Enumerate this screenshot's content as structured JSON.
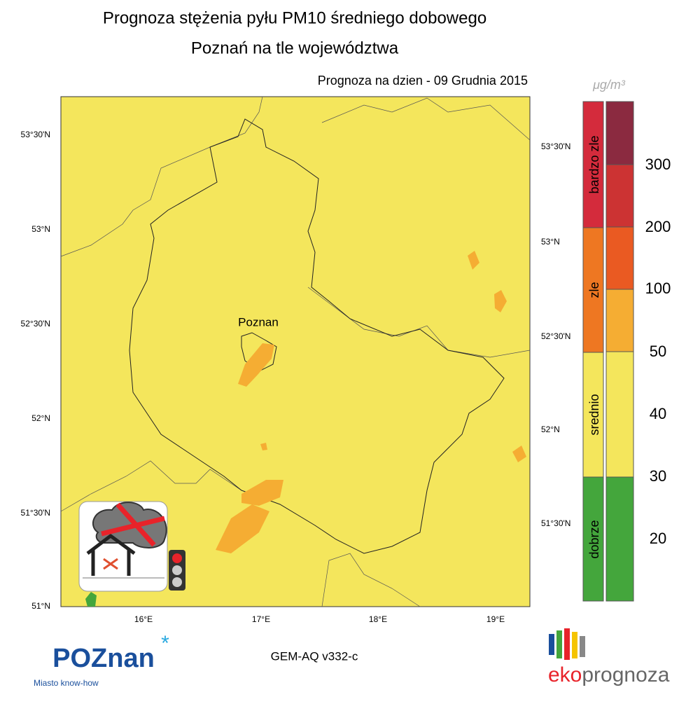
{
  "header": {
    "title_line1": "Prognoza stężenia pyłu PM10 średniego dobowego",
    "title_line2": "Poznań na tle województwa",
    "forecast_date": "Prognoza na dzien -  09 Grudnia 2015"
  },
  "map": {
    "left_lat_ticks": [
      "53°30'N",
      "53°N",
      "52°30'N",
      "52°N",
      "51°30'N",
      "51°N"
    ],
    "right_lat_ticks": [
      "53°30'N",
      "53°N",
      "52°30'N",
      "52°N",
      "51°30'N"
    ],
    "lon_ticks": [
      "16°E",
      "17°E",
      "18°E",
      "19°E"
    ],
    "city_label": "Poznan"
  },
  "legend": {
    "unit": "μg/m³",
    "categories": [
      "bardzo zle",
      "zle",
      "srednio",
      "dobrze"
    ],
    "scale": [
      300,
      200,
      100,
      50,
      40,
      30,
      20
    ]
  },
  "footer": {
    "model": "GEM-AQ v332-c",
    "logo_poznan": "POZnan",
    "logo_tagline": "Miasto know-how",
    "logo_eko": "eko",
    "logo_prognoza": "prognoza"
  }
}
